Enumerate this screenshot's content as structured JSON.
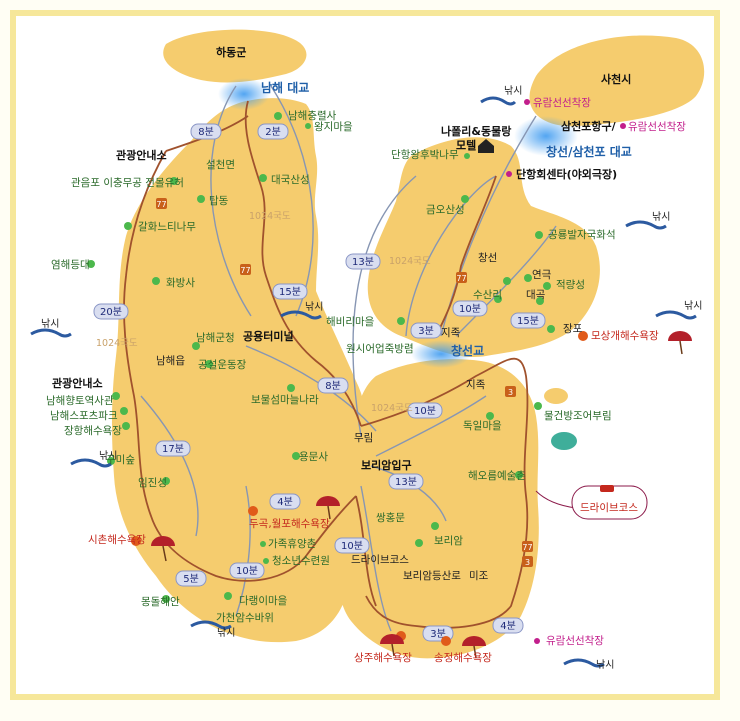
{
  "labels": {
    "hadong": "하동군",
    "namhae_bridge": "남해 대교",
    "sacheon": "사천시",
    "yuram1": "유람선선착장",
    "port_a": "삼천포항구/",
    "port_b": "유람선선착장",
    "motel1": "나폴리&동물랑",
    "motel2": "모텔",
    "changseon_bridge": "창선/삼천포 대교",
    "danhang_hoe": "단항회센타(야외극장)",
    "danhang_tree": "단항왕후박나무",
    "chungryeolsa": "남해충렬사",
    "wangji": "왕지마을",
    "info1": "관광안내소",
    "gwaneumpo": "관음포 이충무공 전몰유허",
    "seolcheon": "설천면",
    "daeguk": "대국산성",
    "tapdong": "탑동",
    "road1024_a": "1024국도",
    "galhwa": "갈화느티나무",
    "yeomhae": "염해등대",
    "hwabang": "화방사",
    "road1024_b": "1024국도",
    "namhae_gun": "남해군청",
    "namhae_eup": "남해읍",
    "gongseol": "공설운동장",
    "terminal": "공용터미널",
    "info2": "관광안내소",
    "hyangto": "남해향토역사관",
    "sports": "남해스포츠파크",
    "janghang": "장항해수욕장",
    "gumi": "구미숲",
    "imjin": "임진성",
    "bomul": "보물섬마늘나라",
    "yongmun": "용문사",
    "mureum": "무림",
    "borieum_ent": "보리암입구",
    "dugok": "두곡,월포해수욕장",
    "gajok": "가족휴양촌",
    "cheongsonyeon": "청소년수련원",
    "ssanghong": "쌍홍문",
    "borieum": "보리암",
    "drive1": "드라이브코스",
    "borieum_road": "보리암등산로",
    "mijo": "미조",
    "sichon": "시촌해수욕장",
    "mongdol": "몽돌해안",
    "darangi": "다랭이마을",
    "gacheon": "가천암수바위",
    "sangju": "상주해수욕장",
    "songjeong": "송정해수욕장",
    "yuram2": "유람선선착장",
    "geumo": "금오산성",
    "road1024_c": "1024국도",
    "gongryong": "공룡발자국화석",
    "yeonguk": "연극",
    "changseon": "창선",
    "susanri": "수산리",
    "daegok": "대곡",
    "jeokryang": "적량성",
    "jangpo": "장포",
    "mosang": "모상개해수욕장",
    "haebiri": "해비리마을",
    "jijok1": "지족",
    "wonsi": "원시어업죽방렴",
    "changseon_gyo": "창선교",
    "jijok2": "지족",
    "road1024_d": "1024국도",
    "dogil": "독일마을",
    "mulgeon": "물건방조어부림",
    "haeoreum": "해오름예술촌",
    "drive2": "드라이브코스",
    "road77a": "77",
    "road77b": "77",
    "road77c": "77",
    "road77d": "77",
    "road3": "3",
    "road3b": "3"
  },
  "times": {
    "t1": "8분",
    "t2": "2분",
    "t3": "15분",
    "t4": "20분",
    "t5": "8분",
    "t6": "17분",
    "t7": "4분",
    "t8": "5분",
    "t9": "10분",
    "t10": "13분",
    "t11": "10분",
    "t12": "3분",
    "t13": "4분",
    "t14": "13분",
    "t15": "10분",
    "t16": "3분",
    "t17": "10분",
    "t18": "15분"
  },
  "fishing": {
    "f1": "낚시",
    "f2": "낚시",
    "f3": "낚시",
    "f4": "낚시",
    "f5": "낚시",
    "f6": "낚시",
    "f7": "낚시",
    "f8": "낚시",
    "f9": "낚시"
  },
  "colors": {
    "land": "#f5cc6e",
    "land_edge": "#e9b450",
    "road_main": "#a0522d",
    "road_minor": "#8796b3",
    "bridge": "#6fb4f0",
    "poi": "#4cb84c",
    "frame": "#f6e79a"
  }
}
